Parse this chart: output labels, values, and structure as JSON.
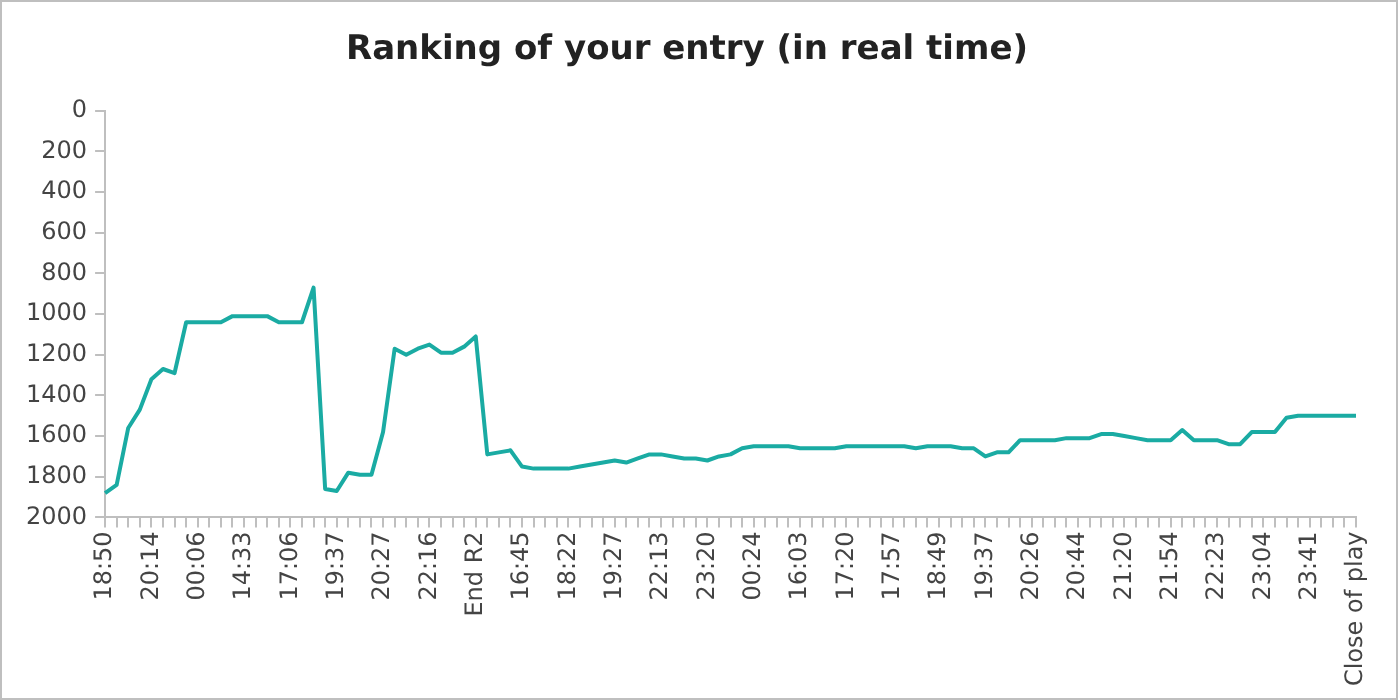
{
  "chart_data": {
    "type": "line",
    "title": "Ranking of your entry (in real time)",
    "categories": [
      "18:50",
      null,
      null,
      null,
      "20:14",
      null,
      null,
      null,
      "00:06",
      null,
      null,
      null,
      "14:33",
      null,
      null,
      null,
      "17:06",
      null,
      null,
      null,
      "19:37",
      null,
      null,
      null,
      "20:27",
      null,
      null,
      null,
      "22:16",
      null,
      null,
      null,
      "End R2",
      null,
      null,
      null,
      "16:45",
      null,
      null,
      null,
      "18:22",
      null,
      null,
      null,
      "19:27",
      null,
      null,
      null,
      "22:13",
      null,
      null,
      null,
      "23:20",
      null,
      null,
      null,
      "00:24",
      null,
      null,
      null,
      "16:03",
      null,
      null,
      null,
      "17:20",
      null,
      null,
      null,
      "17:57",
      null,
      null,
      null,
      "18:49",
      null,
      null,
      null,
      "19:37",
      null,
      null,
      null,
      "20:26",
      null,
      null,
      null,
      "20:44",
      null,
      null,
      null,
      "21:20",
      null,
      null,
      null,
      "21:54",
      null,
      null,
      null,
      "22:23",
      null,
      null,
      null,
      "23:04",
      null,
      null,
      null,
      "23:41",
      null,
      null,
      null,
      "Close of play"
    ],
    "series": [
      {
        "color": "#1aaba3",
        "values": [
          1880,
          1840,
          1560,
          1470,
          1320,
          1270,
          1290,
          1040,
          1040,
          1040,
          1040,
          1010,
          1010,
          1010,
          1010,
          1040,
          1040,
          1040,
          870,
          1860,
          1870,
          1780,
          1790,
          1790,
          1580,
          1170,
          1200,
          1170,
          1150,
          1190,
          1190,
          1160,
          1110,
          1690,
          1680,
          1670,
          1750,
          1760,
          1760,
          1760,
          1760,
          1750,
          1740,
          1730,
          1720,
          1730,
          1710,
          1690,
          1690,
          1700,
          1710,
          1710,
          1720,
          1700,
          1690,
          1660,
          1650,
          1650,
          1650,
          1650,
          1660,
          1660,
          1660,
          1660,
          1650,
          1650,
          1650,
          1650,
          1650,
          1650,
          1660,
          1650,
          1650,
          1650,
          1660,
          1660,
          1700,
          1680,
          1680,
          1620,
          1620,
          1620,
          1620,
          1610,
          1610,
          1610,
          1590,
          1590,
          1600,
          1610,
          1620,
          1620,
          1620,
          1570,
          1620,
          1620,
          1620,
          1640,
          1640,
          1580,
          1580,
          1580,
          1510,
          1500,
          1500,
          1500,
          1500,
          1500,
          1500
        ]
      }
    ],
    "ylim": [
      2000,
      0
    ],
    "yticks": [
      0,
      200,
      400,
      600,
      800,
      1000,
      1200,
      1400,
      1600,
      1800,
      2000
    ],
    "grid": false,
    "legend": false,
    "marker": "none",
    "line_style": "solid"
  }
}
